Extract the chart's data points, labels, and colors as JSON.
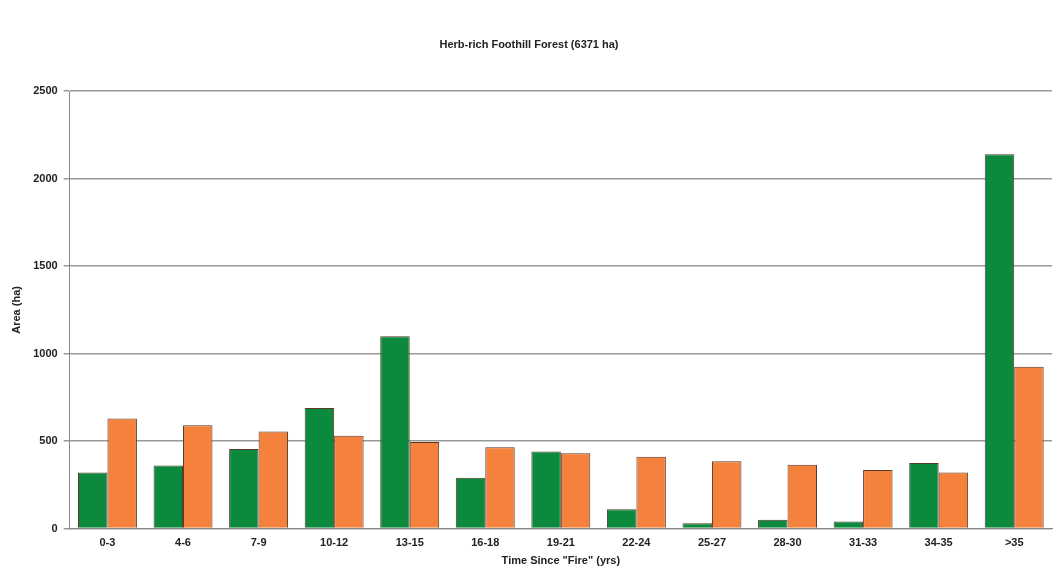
{
  "chart_data": {
    "type": "bar",
    "title": "Herb-rich Foothill Forest (6371 ha)",
    "xlabel": "Time Since \"Fire\" (yrs)",
    "ylabel": "Area (ha)",
    "categories": [
      "0-3",
      "4-6",
      "7-9",
      "10-12",
      "13-15",
      "16-18",
      "19-21",
      "22-24",
      "25-27",
      "28-30",
      "31-33",
      "34-35",
      ">35"
    ],
    "series": [
      {
        "color": "#0b8a3e",
        "values": [
          320,
          360,
          455,
          690,
          1100,
          290,
          440,
          110,
          30,
          50,
          40,
          375,
          2140
        ]
      },
      {
        "color": "#f5823c",
        "values": [
          630,
          590,
          555,
          530,
          495,
          465,
          430,
          410,
          385,
          365,
          335,
          320,
          925
        ]
      }
    ],
    "ylim": [
      0,
      2500
    ],
    "yticks": [
      0,
      500,
      1000,
      1500,
      2000,
      2500
    ],
    "grid": "y",
    "legend": false
  }
}
